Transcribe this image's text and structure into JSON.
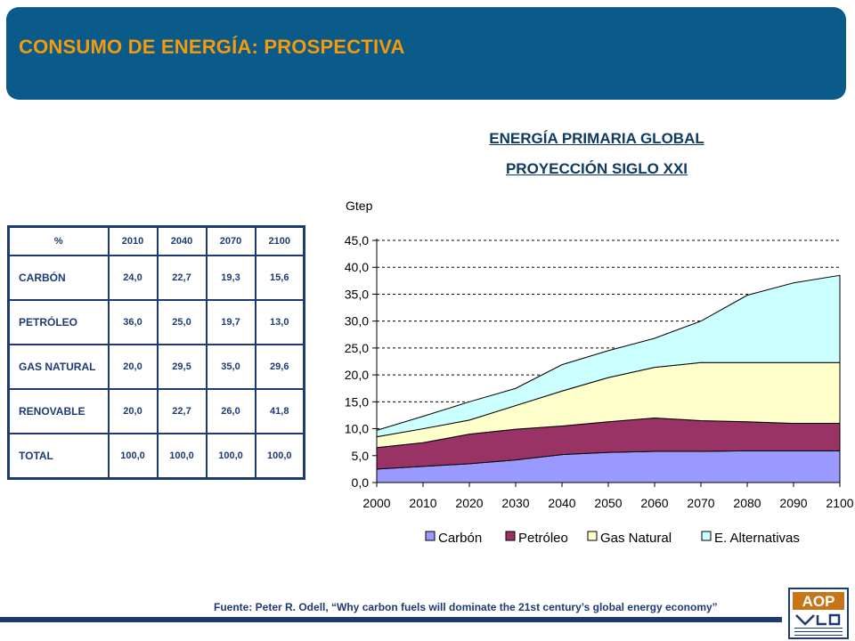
{
  "header": {
    "title": "CONSUMO DE ENERGÍA: PROSPECTIVA"
  },
  "colors": {
    "header_bg": "#0a5b8a",
    "title_orange": "#f59a0a",
    "navy": "#1e3a72"
  },
  "table": {
    "headers": [
      "%",
      "2010",
      "2040",
      "2070",
      "2100"
    ],
    "rows": [
      {
        "label": "CARBÓN",
        "values": [
          "24,0",
          "22,7",
          "19,3",
          "15,6"
        ]
      },
      {
        "label": "PETRÓLEO",
        "values": [
          "36,0",
          "25,0",
          "19,7",
          "13,0"
        ]
      },
      {
        "label": "GAS NATURAL",
        "values": [
          "20,0",
          "29,5",
          "35,0",
          "29,6"
        ]
      },
      {
        "label": "RENOVABLE",
        "values": [
          "20,0",
          "22,7",
          "26,0",
          "41,8"
        ]
      },
      {
        "label": "TOTAL",
        "values": [
          "100,0",
          "100,0",
          "100,0",
          "100,0"
        ]
      }
    ]
  },
  "source": "Fuente: Peter R. Odell, “Why carbon fuels will dominate the 21st century’s global energy economy”",
  "logo": {
    "text": "AOP",
    "subtext": "ASOCIACIÓN ESPAÑOLA DE OPERADORES DE PRODUCTOS PETROLÍFEROS"
  },
  "chart_data": {
    "type": "area",
    "stacked": true,
    "title": "ENERGÍA PRIMARIA GLOBAL",
    "subtitle": "PROYECCIÓN SIGLO XXI",
    "ylabel": "Gtep",
    "xlabel": "",
    "x": [
      2000,
      2010,
      2020,
      2030,
      2040,
      2050,
      2060,
      2070,
      2080,
      2090,
      2100
    ],
    "ylim": [
      0,
      45
    ],
    "yticks": [
      "0,0",
      "5,0",
      "10,0",
      "15,0",
      "20,0",
      "25,0",
      "30,0",
      "35,0",
      "40,0",
      "45,0"
    ],
    "grid": true,
    "legend": "bottom",
    "series": [
      {
        "name": "Carbón",
        "color": "#9999ff",
        "values": [
          2.5,
          3.0,
          3.5,
          4.2,
          5.2,
          5.6,
          5.8,
          5.8,
          5.9,
          5.9,
          5.9
        ]
      },
      {
        "name": "Petróleo",
        "color": "#993366",
        "values": [
          4.0,
          4.4,
          5.5,
          5.7,
          5.3,
          5.7,
          6.2,
          5.7,
          5.4,
          5.1,
          5.1
        ]
      },
      {
        "name": "Gas Natural",
        "color": "#ffffcc",
        "values": [
          2.0,
          2.6,
          2.6,
          4.4,
          6.5,
          8.2,
          9.4,
          10.8,
          11.0,
          11.3,
          11.3
        ]
      },
      {
        "name": "E. Alternativas",
        "color": "#ccffff",
        "values": [
          1.2,
          2.3,
          3.4,
          3.2,
          4.9,
          5.0,
          5.4,
          7.7,
          12.5,
          14.8,
          16.2
        ]
      }
    ]
  }
}
